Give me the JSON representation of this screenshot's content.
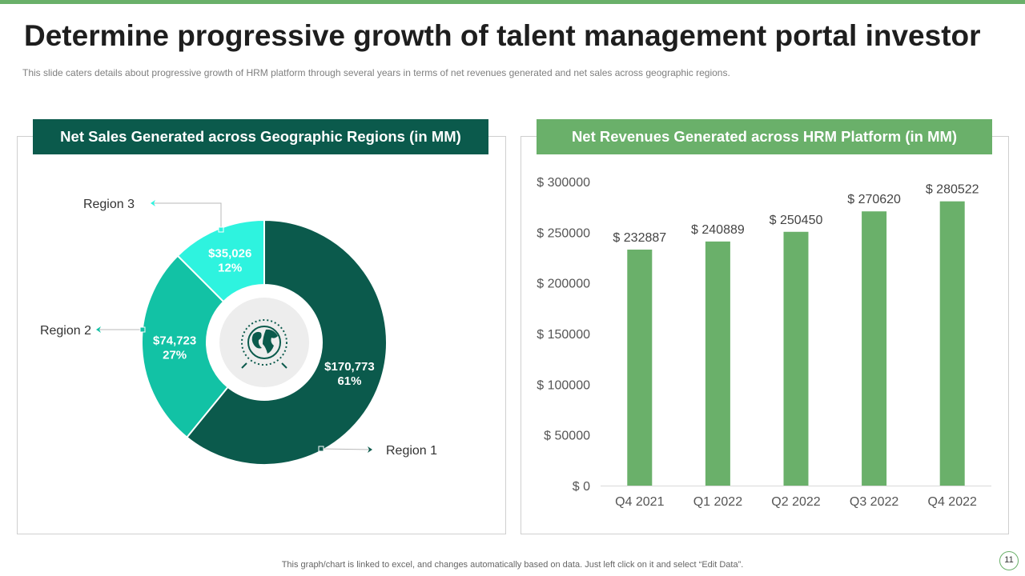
{
  "slide": {
    "title": "Determine progressive growth of talent management portal investor",
    "subtitle": "This slide caters details about progressive  growth of HRM platform through several  years in terms of net revenues  generated and net sales across geographic regions.",
    "footer": "This graph/chart is linked to excel,  and changes automatically based on data. Just left click on it and select “Edit Data”.",
    "page_number": "11",
    "accent_color": "#6ab06a",
    "dark_color": "#0b5a4c"
  },
  "chart_data": [
    {
      "type": "pie",
      "title": "Net Sales Generated across Geographic Regions (in MM)",
      "center_icon": "globe-icon",
      "slices": [
        {
          "name": "Region 1",
          "value_label": "$170,773",
          "percent_label": "61%",
          "value": 170773,
          "color": "#0b5a4c"
        },
        {
          "name": "Region 2",
          "value_label": "$74,723",
          "percent_label": "27%",
          "value": 74723,
          "color": "#12c2a5"
        },
        {
          "name": "Region 3",
          "value_label": "$35,026",
          "percent_label": "12%",
          "value": 35026,
          "color": "#2ef3df"
        }
      ]
    },
    {
      "type": "bar",
      "title": "Net Revenues Generated across HRM Platform (in MM)",
      "categories": [
        "Q4 2021",
        "Q1 2022",
        "Q2 2022",
        "Q3 2022",
        "Q4 2022"
      ],
      "values": [
        232887,
        240889,
        250450,
        270620,
        280522
      ],
      "data_labels": [
        "$ 232887",
        "$ 240889",
        "$ 250450",
        "$ 270620",
        "$ 280522"
      ],
      "ylim": [
        0,
        300000
      ],
      "yticks": [
        0,
        50000,
        100000,
        150000,
        200000,
        250000,
        300000
      ],
      "ytick_labels": [
        "$ 0",
        "$ 50000",
        "$ 100000",
        "$ 150000",
        "$ 200000",
        "$ 250000",
        "$ 300000"
      ],
      "bar_color": "#6ab06a",
      "xlabel": "",
      "ylabel": ""
    }
  ]
}
